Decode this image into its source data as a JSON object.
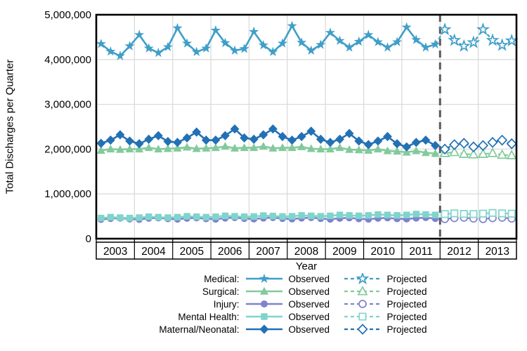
{
  "figure": {
    "y_axis_title": "Total Discharges per Quarter",
    "x_axis_title": "Year",
    "legend": {
      "observed_label": "Observed",
      "projected_label": "Projected"
    }
  },
  "chart_data": {
    "type": "line",
    "title": "",
    "xlabel": "Year",
    "ylabel": "Total Discharges per Quarter",
    "ylim": [
      0,
      5000000
    ],
    "ytick_values": [
      0,
      1000000,
      2000000,
      3000000,
      4000000,
      5000000
    ],
    "ytick_labels": [
      "0",
      "1,000,000",
      "2,000,000",
      "3,000,000",
      "4,000,000",
      "5,000,000"
    ],
    "year_labels": [
      "2003",
      "2004",
      "2005",
      "2006",
      "2007",
      "2008",
      "2009",
      "2010",
      "2011",
      "2012",
      "2013"
    ],
    "quarters_per_year": 4,
    "observed_quarters": "2003Q1-2011Q4",
    "projected_quarters": "2012Q1-2013Q4",
    "divider_after_year": "2011",
    "grid": true,
    "legend_position": "bottom",
    "colors": {
      "grid": "#DBDBDB",
      "frame": "#000000",
      "reference_line": "#5A5A5A"
    },
    "series": [
      {
        "name": "Medical:",
        "marker": "star",
        "color": "#3F9FC8",
        "observed": [
          4350000,
          4180000,
          4080000,
          4300000,
          4550000,
          4250000,
          4150000,
          4280000,
          4700000,
          4360000,
          4170000,
          4250000,
          4650000,
          4370000,
          4200000,
          4240000,
          4620000,
          4320000,
          4170000,
          4360000,
          4750000,
          4380000,
          4200000,
          4330000,
          4600000,
          4420000,
          4270000,
          4400000,
          4550000,
          4390000,
          4270000,
          4390000,
          4720000,
          4440000,
          4270000,
          4340000
        ],
        "projected": [
          4670000,
          4430000,
          4300000,
          4380000,
          4670000,
          4430000,
          4320000,
          4420000
        ]
      },
      {
        "name": "Surgical:",
        "marker": "triangle",
        "color": "#82CA9C",
        "observed": [
          1970000,
          2000000,
          1990000,
          2000000,
          2000000,
          2030000,
          2000000,
          2010000,
          2020000,
          2040000,
          2010000,
          2020000,
          2030000,
          2060000,
          2020000,
          2030000,
          2030000,
          2060000,
          2020000,
          2030000,
          2030000,
          2050000,
          2010000,
          2000000,
          2000000,
          2030000,
          1990000,
          1980000,
          1970000,
          2000000,
          1960000,
          1950000,
          1930000,
          1960000,
          1920000,
          1900000
        ],
        "projected": [
          1910000,
          1930000,
          1890000,
          1880000,
          1890000,
          1910000,
          1870000,
          1860000
        ]
      },
      {
        "name": "Injury:",
        "marker": "circle",
        "color": "#7D83CE",
        "observed": [
          430000,
          450000,
          460000,
          440000,
          430000,
          455000,
          465000,
          445000,
          435000,
          455000,
          465000,
          445000,
          435000,
          460000,
          470000,
          450000,
          440000,
          460000,
          470000,
          450000,
          440000,
          460000,
          470000,
          450000,
          435000,
          455000,
          465000,
          445000,
          435000,
          455000,
          465000,
          445000,
          440000,
          460000,
          470000,
          450000
        ],
        "projected": [
          440000,
          460000,
          470000,
          450000,
          440000,
          460000,
          470000,
          450000
        ]
      },
      {
        "name": "Mental Health:",
        "marker": "square",
        "color": "#80D4CB",
        "observed": [
          460000,
          480000,
          470000,
          460000,
          470000,
          490000,
          480000,
          470000,
          480000,
          500000,
          490000,
          480000,
          490000,
          510000,
          500000,
          490000,
          495000,
          515000,
          505000,
          495000,
          500000,
          520000,
          510000,
          500000,
          510000,
          530000,
          520000,
          510000,
          520000,
          540000,
          530000,
          520000,
          530000,
          550000,
          540000,
          530000
        ],
        "projected": [
          550000,
          565000,
          555000,
          550000,
          560000,
          575000,
          565000,
          560000
        ]
      },
      {
        "name": "Maternal/Neonatal:",
        "marker": "diamond",
        "color": "#2271B5",
        "observed": [
          2130000,
          2200000,
          2320000,
          2180000,
          2120000,
          2220000,
          2300000,
          2170000,
          2150000,
          2250000,
          2380000,
          2200000,
          2200000,
          2300000,
          2450000,
          2250000,
          2220000,
          2320000,
          2450000,
          2280000,
          2200000,
          2280000,
          2400000,
          2220000,
          2150000,
          2220000,
          2350000,
          2180000,
          2100000,
          2180000,
          2280000,
          2120000,
          2050000,
          2150000,
          2200000,
          2080000
        ],
        "projected": [
          2000000,
          2100000,
          2130000,
          2050000,
          2080000,
          2150000,
          2200000,
          2120000
        ]
      }
    ]
  }
}
